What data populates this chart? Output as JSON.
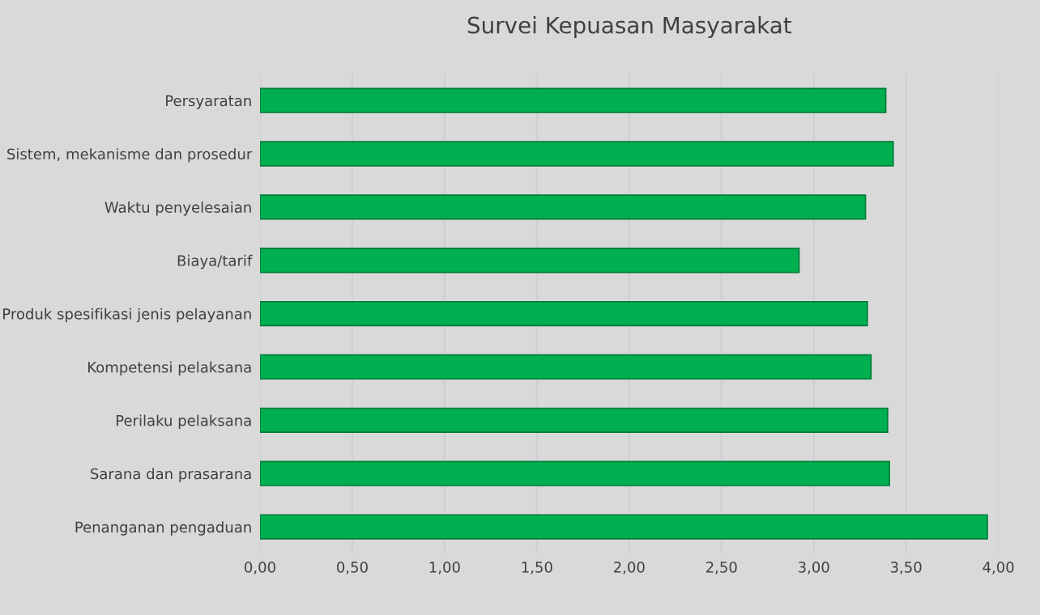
{
  "chart_data": {
    "type": "bar",
    "orientation": "horizontal",
    "title": "Survei Kepuasan Masyarakat",
    "categories": [
      "Persyaratan",
      "Sistem, mekanisme dan prosedur",
      "Waktu penyelesaian",
      "Biaya/tarif",
      "Produk spesifikasi jenis pelayanan",
      "Kompetensi pelaksana",
      "Perilaku pelaksana",
      "Sarana dan prasarana",
      "Penanganan pengaduan"
    ],
    "values": [
      3.39,
      3.43,
      3.28,
      2.92,
      3.29,
      3.31,
      3.4,
      3.41,
      3.94
    ],
    "color": "#00b050",
    "xlim": [
      0,
      4
    ],
    "xticks": [
      {
        "value": 0,
        "label": "0,00"
      },
      {
        "value": 0.5,
        "label": "0,50"
      },
      {
        "value": 1,
        "label": "1,00"
      },
      {
        "value": 1.5,
        "label": "1,50"
      },
      {
        "value": 2,
        "label": "2,00"
      },
      {
        "value": 2.5,
        "label": "2,50"
      },
      {
        "value": 3,
        "label": "3,00"
      },
      {
        "value": 3.5,
        "label": "3,50"
      },
      {
        "value": 4,
        "label": "4,00"
      }
    ],
    "grid": "x",
    "legend": false
  }
}
